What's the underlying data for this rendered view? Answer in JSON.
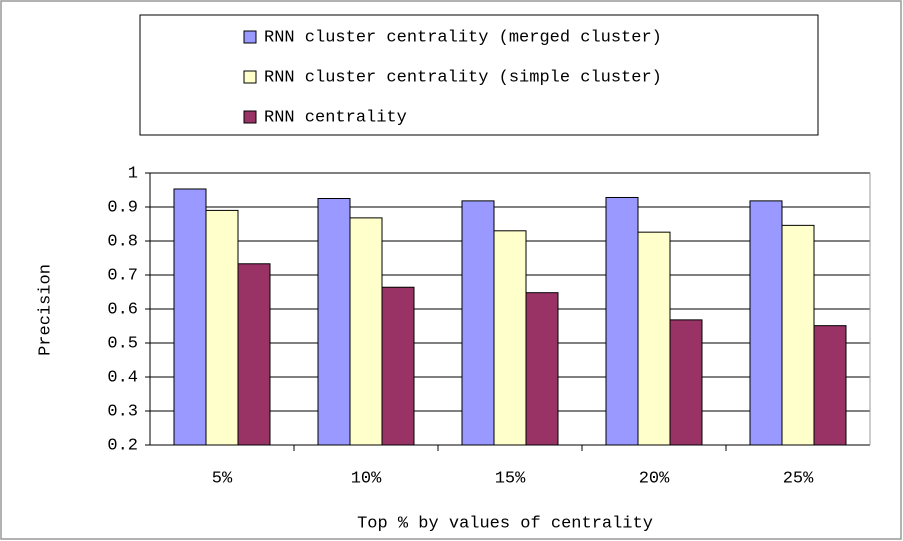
{
  "chart_data": {
    "type": "bar",
    "xlabel": "Top % by values of centrality",
    "ylabel": "Precision",
    "categories": [
      "5%",
      "10%",
      "15%",
      "20%",
      "25%"
    ],
    "series": [
      {
        "name": "RNN cluster centrality (merged cluster)",
        "color": "#9999ff",
        "values": [
          0.953,
          0.925,
          0.918,
          0.928,
          0.918
        ]
      },
      {
        "name": "RNN cluster centrality (simple cluster)",
        "color": "#ffffcc",
        "values": [
          0.89,
          0.868,
          0.83,
          0.826,
          0.846
        ]
      },
      {
        "name": "RNN centrality",
        "color": "#993366",
        "values": [
          0.733,
          0.664,
          0.648,
          0.568,
          0.551
        ]
      }
    ],
    "ylim": [
      0.2,
      1
    ],
    "yticks": [
      0.2,
      0.3,
      0.4,
      0.5,
      0.6,
      0.7,
      0.8,
      0.9,
      1
    ],
    "grid": true,
    "legend": "top"
  }
}
